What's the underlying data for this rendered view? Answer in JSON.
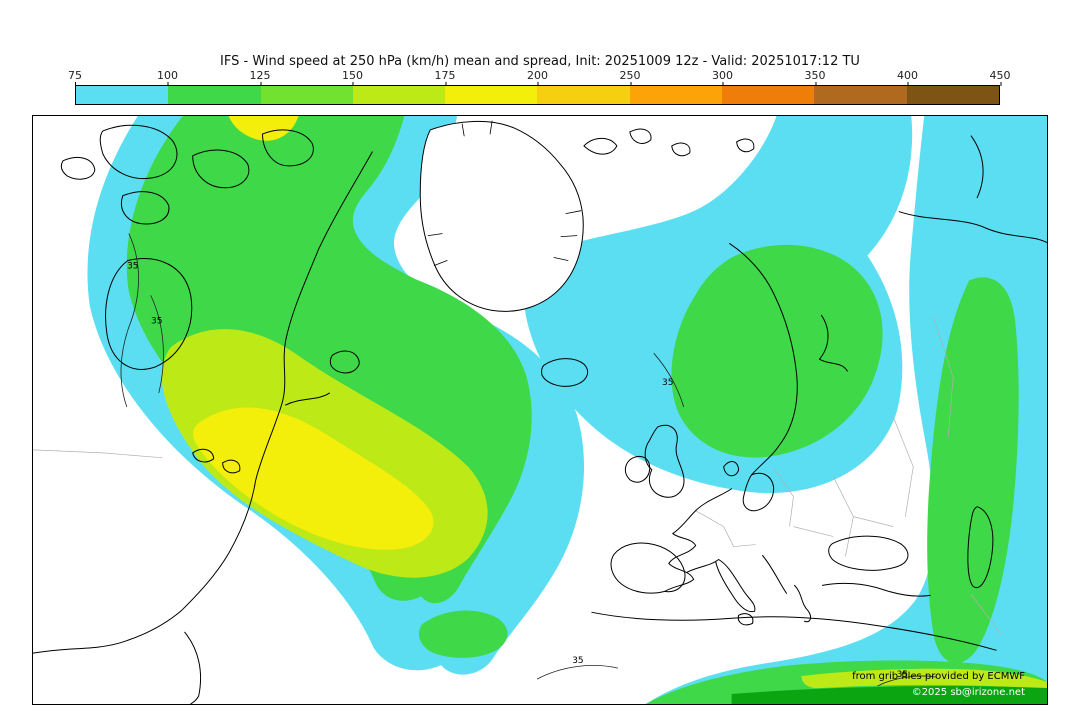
{
  "title": "IFS - Wind speed at 250 hPa (km/h) mean and spread, Init: 20251009 12z - Valid: 20251017:12 TU",
  "legend": {
    "ticks": [
      "75",
      "100",
      "125",
      "150",
      "175",
      "200",
      "250",
      "300",
      "350",
      "400",
      "450"
    ],
    "colors": [
      "#5bdef2",
      "#3fd848",
      "#71e22f",
      "#bdea17",
      "#f4ee0b",
      "#f6cf11",
      "#fba307",
      "#ee7d09",
      "#b06a20",
      "#7d5414"
    ]
  },
  "map": {
    "contour_label": "35",
    "dark_green": "#0ba512",
    "attribution_line1": "from grib files provided by ECMWF",
    "attribution_line2": "©2025 sb@irizone.net"
  }
}
